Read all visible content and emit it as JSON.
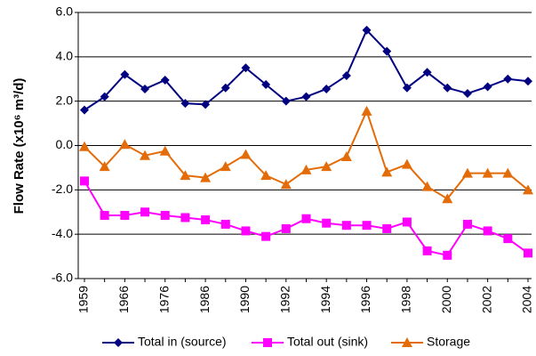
{
  "chart_data": {
    "type": "line",
    "y_label": "Flow Rate (x10⁶ m³/d)",
    "categories": [
      "1959",
      null,
      "1966",
      null,
      "1976",
      null,
      "1986",
      null,
      "1990",
      null,
      "1992",
      null,
      "1994",
      null,
      "1996",
      null,
      "1998",
      null,
      "2000",
      null,
      "2002",
      null,
      "2004"
    ],
    "series": [
      {
        "name": "Total in (source)",
        "color": "#000080",
        "marker": "diamond",
        "values": [
          1.6,
          2.2,
          3.2,
          2.55,
          2.95,
          1.9,
          1.85,
          2.6,
          3.5,
          2.75,
          2.0,
          2.2,
          2.55,
          3.15,
          5.2,
          4.25,
          2.6,
          3.3,
          2.6,
          2.35,
          2.65,
          3.0,
          2.9
        ]
      },
      {
        "name": "Total out (sink)",
        "color": "#ff00ff",
        "marker": "square",
        "values": [
          -1.6,
          -3.15,
          -3.15,
          -3.0,
          -3.15,
          -3.25,
          -3.35,
          -3.55,
          -3.85,
          -4.1,
          -3.75,
          -3.3,
          -3.5,
          -3.6,
          -3.6,
          -3.75,
          -3.45,
          -4.75,
          -4.95,
          -3.55,
          -3.85,
          -4.2,
          -4.85
        ]
      },
      {
        "name": "Storage",
        "color": "#e36c09",
        "marker": "triangle",
        "values": [
          -0.05,
          -0.95,
          0.05,
          -0.45,
          -0.25,
          -1.35,
          -1.45,
          -0.95,
          -0.4,
          -1.35,
          -1.75,
          -1.1,
          -0.95,
          -0.5,
          1.55,
          -1.2,
          -0.85,
          -1.85,
          -2.4,
          -1.25,
          -1.25,
          -1.25,
          -2.0
        ]
      }
    ],
    "ylim": [
      -6,
      6
    ],
    "yticks": [
      {
        "value": -6,
        "label": "-6.0"
      },
      {
        "value": -4,
        "label": "-4.0"
      },
      {
        "value": -2,
        "label": "-2.0"
      },
      {
        "value": 0,
        "label": "0.0"
      },
      {
        "value": 2,
        "label": "2.0"
      },
      {
        "value": 4,
        "label": "4.0"
      },
      {
        "value": 6,
        "label": "6.0"
      }
    ],
    "grid": true,
    "legend": "bottom"
  }
}
